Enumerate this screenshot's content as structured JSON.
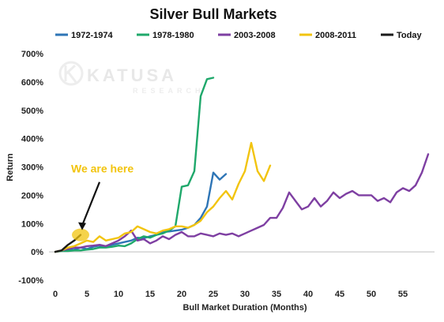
{
  "chart_data": {
    "type": "line",
    "title": "Silver Bull Markets",
    "xlabel": "Bull Market Duration (Months)",
    "ylabel": "Return",
    "xlim": [
      -1,
      60
    ],
    "ylim": [
      -100,
      700
    ],
    "xticks": [
      0,
      5,
      10,
      15,
      20,
      25,
      30,
      35,
      40,
      45,
      50,
      55
    ],
    "yticks": [
      -100,
      0,
      100,
      200,
      300,
      400,
      500,
      600,
      700
    ],
    "ytick_format": "percent",
    "grid": false,
    "legend_position": "top",
    "watermark": {
      "text": "KATUSA",
      "subtext": "RESEARCH"
    },
    "annotation": {
      "text": "We are here",
      "point": [
        4,
        60
      ],
      "text_at": [
        3,
        280
      ],
      "color": "#f2c40f"
    },
    "series": [
      {
        "name": "1972-1974",
        "color": "#2e75b6",
        "x": [
          0,
          1,
          2,
          3,
          4,
          5,
          6,
          7,
          8,
          9,
          10,
          11,
          12,
          13,
          14,
          15,
          16,
          17,
          18,
          19,
          20,
          21,
          22,
          23,
          24,
          25,
          26,
          27
        ],
        "y": [
          0,
          5,
          5,
          8,
          15,
          10,
          18,
          22,
          18,
          25,
          30,
          35,
          40,
          50,
          48,
          55,
          60,
          70,
          72,
          75,
          78,
          85,
          95,
          120,
          160,
          280,
          255,
          275
        ]
      },
      {
        "name": "1978-1980",
        "color": "#1fa86b",
        "x": [
          0,
          1,
          2,
          3,
          4,
          5,
          6,
          7,
          8,
          9,
          10,
          11,
          12,
          13,
          14,
          15,
          16,
          17,
          18,
          19,
          20,
          21,
          22,
          23,
          24,
          25
        ],
        "y": [
          0,
          3,
          3,
          5,
          5,
          8,
          10,
          15,
          15,
          18,
          22,
          20,
          30,
          45,
          55,
          50,
          60,
          65,
          75,
          90,
          230,
          235,
          285,
          550,
          610,
          615
        ]
      },
      {
        "name": "2003-2008",
        "color": "#7e3fa2",
        "x": [
          0,
          1,
          2,
          3,
          4,
          5,
          6,
          7,
          8,
          9,
          10,
          11,
          12,
          13,
          14,
          15,
          16,
          17,
          18,
          19,
          20,
          21,
          22,
          23,
          24,
          25,
          26,
          27,
          28,
          29,
          30,
          31,
          32,
          33,
          34,
          35,
          36,
          37,
          38,
          39,
          40,
          41,
          42,
          43,
          44,
          45,
          46,
          47,
          48,
          49,
          50,
          51,
          52,
          53,
          54,
          55,
          56,
          57,
          58,
          59
        ],
        "y": [
          0,
          5,
          10,
          15,
          15,
          20,
          22,
          25,
          20,
          30,
          40,
          55,
          75,
          40,
          45,
          30,
          40,
          55,
          45,
          60,
          70,
          55,
          55,
          65,
          60,
          55,
          65,
          60,
          65,
          55,
          65,
          75,
          85,
          95,
          120,
          120,
          155,
          210,
          180,
          150,
          160,
          190,
          160,
          180,
          210,
          190,
          205,
          215,
          200,
          200,
          200,
          180,
          190,
          175,
          210,
          225,
          215,
          235,
          280,
          345
        ]
      },
      {
        "name": "2008-2011",
        "color": "#f2c40f",
        "x": [
          0,
          1,
          2,
          3,
          4,
          5,
          6,
          7,
          8,
          9,
          10,
          11,
          12,
          13,
          14,
          15,
          16,
          17,
          18,
          19,
          20,
          21,
          22,
          23,
          24,
          25,
          26,
          27,
          28,
          29,
          30,
          31,
          32,
          33,
          34
        ],
        "y": [
          0,
          5,
          15,
          20,
          30,
          40,
          35,
          55,
          40,
          45,
          50,
          65,
          70,
          90,
          80,
          70,
          65,
          75,
          80,
          90,
          90,
          85,
          95,
          110,
          140,
          160,
          190,
          215,
          185,
          240,
          285,
          385,
          285,
          250,
          305
        ]
      },
      {
        "name": "Today",
        "color": "#1a1a1a",
        "x": [
          0,
          1,
          2,
          3,
          4
        ],
        "y": [
          0,
          5,
          25,
          40,
          60
        ]
      }
    ]
  }
}
